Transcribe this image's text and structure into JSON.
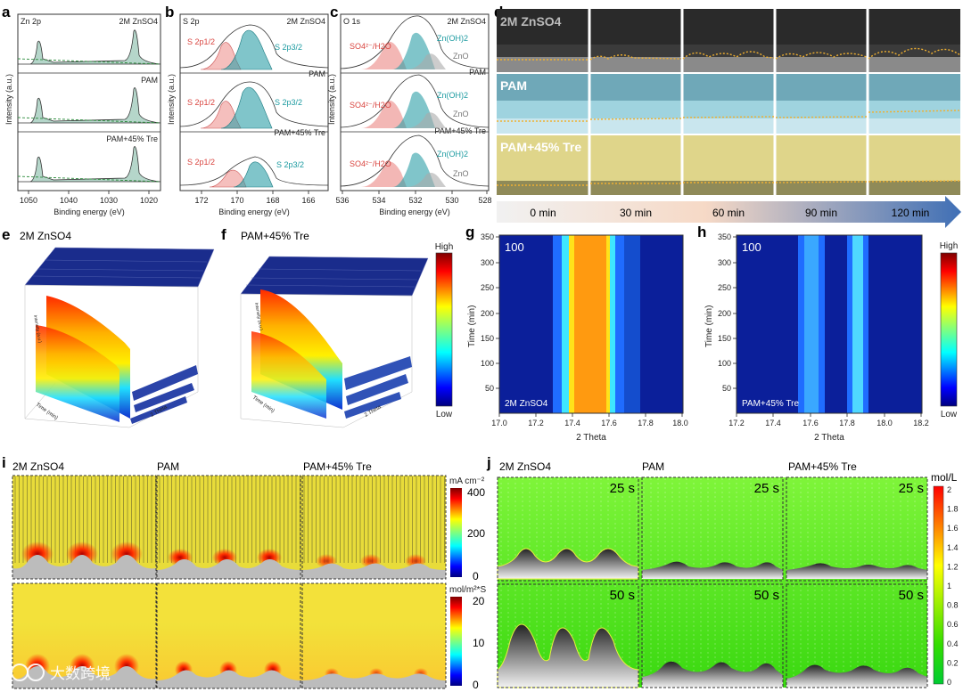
{
  "panels": {
    "a": {
      "letter": "a",
      "element": "Zn 2p",
      "rows": [
        "2M ZnSO4",
        "PAM",
        "PAM+45% Tre"
      ],
      "ylabel": "Intensity (a.u.)",
      "xlabel": "Binding energy (eV)",
      "xticks": [
        "1050",
        "1040",
        "1030",
        "1020"
      ]
    },
    "b": {
      "letter": "b",
      "element": "S 2p",
      "rows": [
        "2M ZnSO4",
        "PAM",
        "PAM+45% Tre"
      ],
      "peak1": "S 2p1/2",
      "peak2": "S 2p3/2",
      "ylabel": "Intensity (a.u.)",
      "xlabel": "Binding energy (eV)",
      "xticks": [
        "172",
        "170",
        "168",
        "166"
      ]
    },
    "c": {
      "letter": "c",
      "element": "O 1s",
      "rows": [
        "2M ZnSO4",
        "PAM",
        "PAM+45% Tre"
      ],
      "peak1": "SO4²⁻/H2O",
      "peak2": "Zn(OH)2",
      "peak3": "ZnO",
      "ylabel": "Intensity (a.u.)",
      "xlabel": "Binding energy (eV)",
      "xticks": [
        "536",
        "534",
        "532",
        "530",
        "528"
      ]
    },
    "d": {
      "letter": "d",
      "rows": [
        "2M ZnSO4",
        "PAM",
        "PAM+45% Tre"
      ],
      "times": [
        "0 min",
        "30 min",
        "60 min",
        "90 min",
        "120 min"
      ]
    },
    "e": {
      "letter": "e",
      "title": "2M ZnSO4",
      "axis_label": "Time (min)",
      "x_label": "2 Theta",
      "z_label": "Intensity (a.u.)"
    },
    "f": {
      "letter": "f",
      "title": "PAM+45% Tre",
      "axis_label": "Time (min)",
      "x_label": "2 Theta",
      "z_label": "Intensity (a.u.)"
    },
    "ef_colorbar": {
      "high": "High",
      "low": "Low"
    },
    "g": {
      "letter": "g",
      "corner": "100",
      "label": "2M ZnSO4",
      "ylabel": "Time (min)",
      "xlabel": "2 Theta",
      "xticks": [
        "17.0",
        "17.2",
        "17.4",
        "17.6",
        "17.8",
        "18.0"
      ],
      "yticks": [
        "350",
        "300",
        "250",
        "200",
        "150",
        "100",
        "50"
      ]
    },
    "h": {
      "letter": "h",
      "corner": "100",
      "label": "PAM+45% Tre",
      "ylabel": "Time (min)",
      "xlabel": "2 Theta",
      "xticks": [
        "17.2",
        "17.4",
        "17.6",
        "17.8",
        "18.0",
        "18.2"
      ],
      "yticks": [
        "350",
        "300",
        "250",
        "200",
        "150",
        "100",
        "50"
      ],
      "cb_high": "High",
      "cb_low": "Low"
    },
    "i": {
      "letter": "i",
      "cols": [
        "2M ZnSO4",
        "PAM",
        "PAM+45% Tre"
      ],
      "cb1_unit": "mA cm⁻²",
      "cb1_ticks": [
        "400",
        "200",
        "0"
      ],
      "cb2_unit": "mol/m²*S",
      "cb2_ticks": [
        "20",
        "10",
        "0"
      ]
    },
    "j": {
      "letter": "j",
      "cols": [
        "2M ZnSO4",
        "PAM",
        "PAM+45% Tre"
      ],
      "times": [
        "25 s",
        "50 s"
      ],
      "cb_unit": "mol/L",
      "cb_ticks": [
        "2",
        "1.8",
        "1.6",
        "1.4",
        "1.2",
        "1",
        "0.8",
        "0.6",
        "0.4",
        "0.2",
        "0"
      ]
    }
  },
  "watermark": "大数跨境"
}
